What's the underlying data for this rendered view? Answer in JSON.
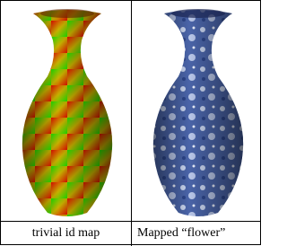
{
  "cells": [
    {
      "caption": "trivial id map"
    },
    {
      "caption": "Mapped “flower”"
    }
  ]
}
